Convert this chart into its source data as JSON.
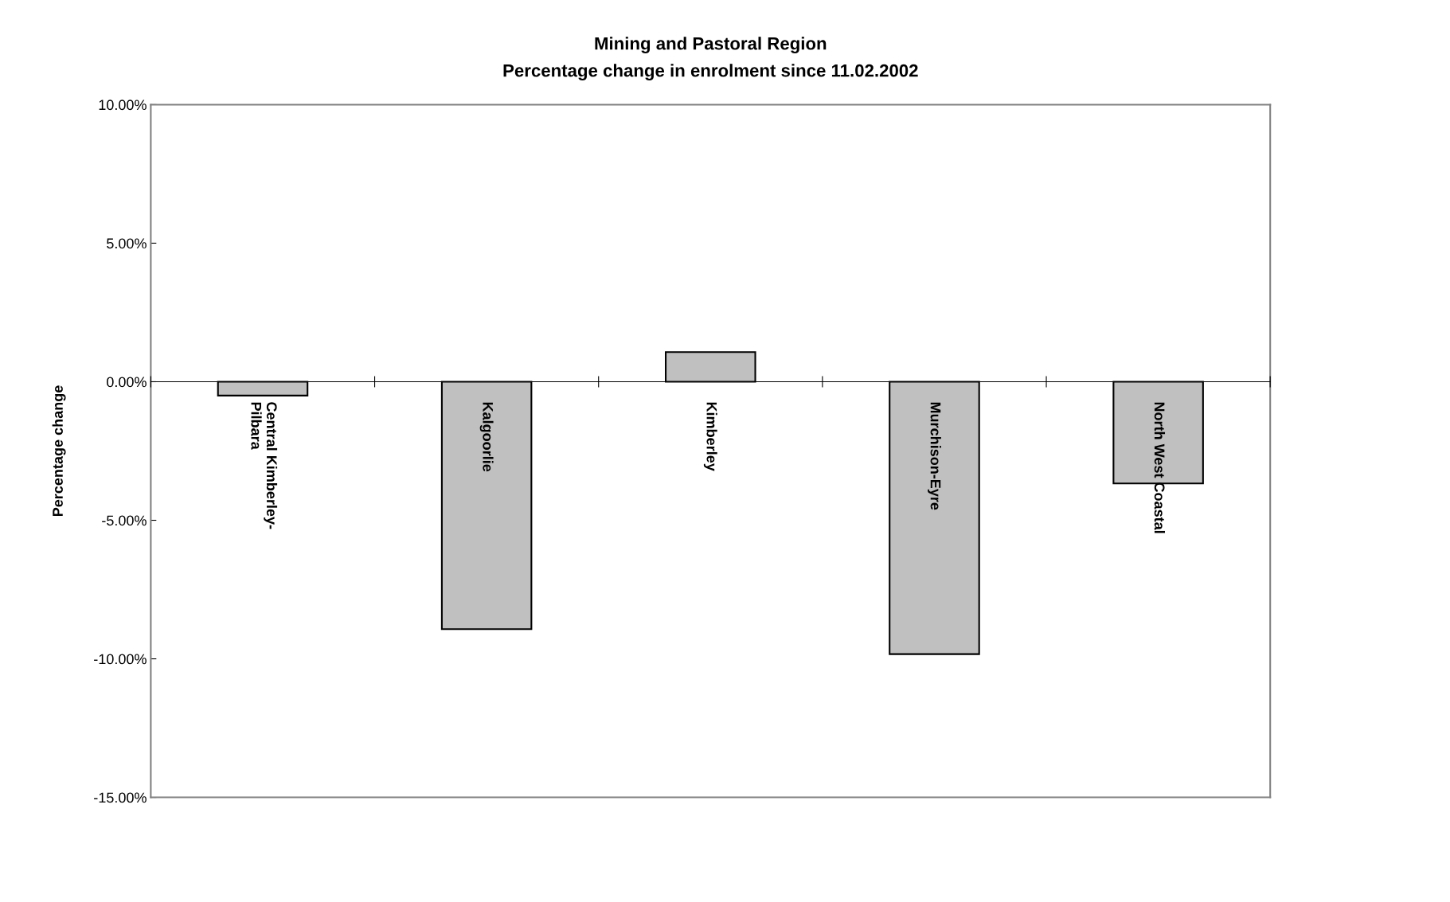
{
  "chart_data": {
    "type": "bar",
    "title": "Mining and Pastoral Region",
    "subtitle": "Percentage change in enrolment since 11.02.2002",
    "ylabel": "Percentage change",
    "categories": [
      "Central Kimberley-\nPilbara",
      "Kalgoorlie",
      "Kimberley",
      "Murchison-Eyre",
      "North West Coastal"
    ],
    "values": [
      -0.5,
      -8.93,
      1.07,
      -9.83,
      -3.67
    ],
    "color": "#c0c0c0",
    "ylim": [
      -15,
      10
    ],
    "yticks": [
      {
        "value": -15,
        "label": "-15.00%"
      },
      {
        "value": -10,
        "label": "-10.00%"
      },
      {
        "value": -5,
        "label": "-5.00%"
      },
      {
        "value": 0,
        "label": "0.00%"
      },
      {
        "value": 5,
        "label": "5.00%"
      },
      {
        "value": 10,
        "label": "10.00%"
      }
    ],
    "grid": false,
    "legend": false
  }
}
